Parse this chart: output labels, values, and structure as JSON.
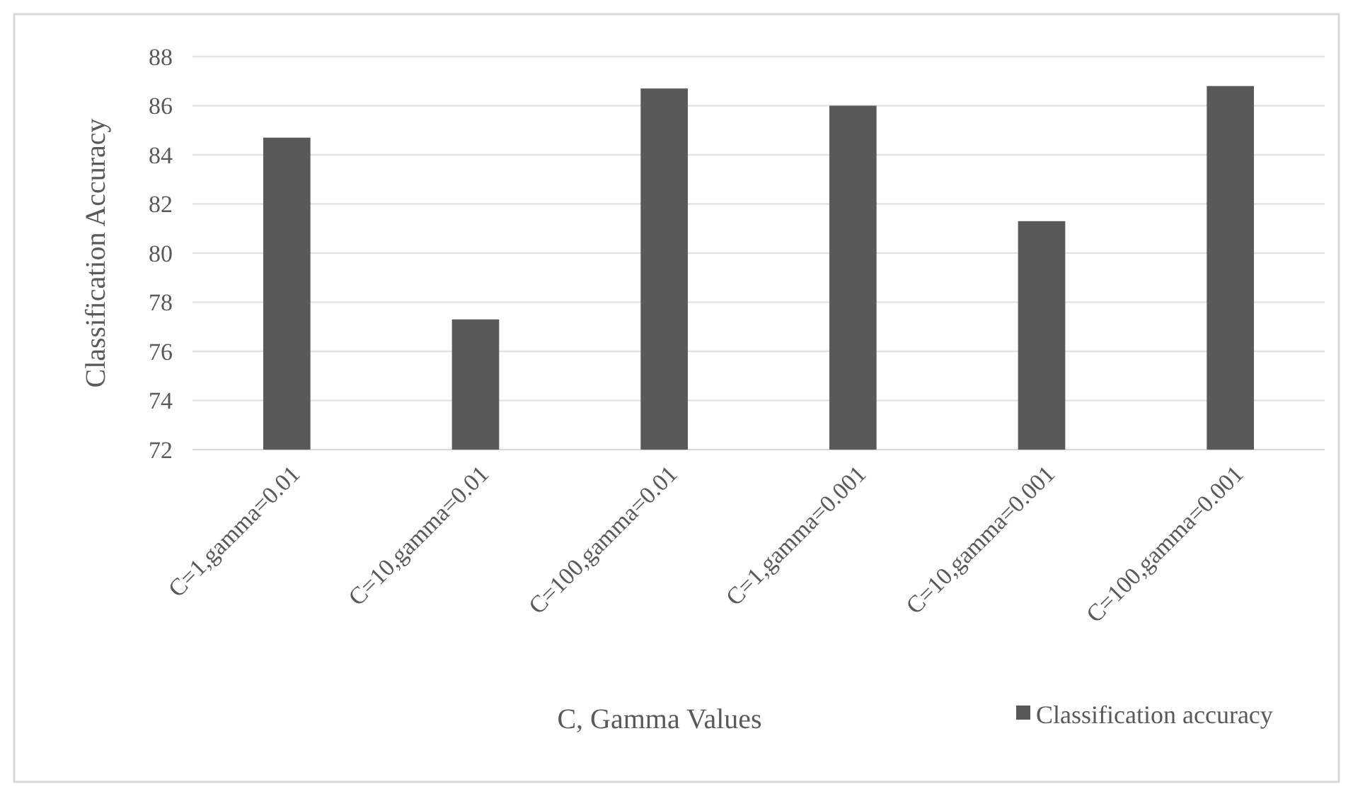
{
  "chart_data": {
    "type": "bar",
    "xlabel": "C, Gamma Values",
    "ylabel": "Classification Accuracy",
    "categories": [
      "C=1,gamma=0.01",
      "C=10,gamma=0.01",
      "C=100,gamma=0.01",
      "C=1,gamma=0.001",
      "C=10,gamma=0.001",
      "C=100,gamma=0.001"
    ],
    "series": [
      {
        "name": "Classification accuracy",
        "color": "#595959",
        "values": [
          84.7,
          77.3,
          86.7,
          86.0,
          81.3,
          86.8
        ]
      }
    ],
    "ylim": [
      72,
      88
    ],
    "yticks": [
      72,
      74,
      76,
      78,
      80,
      82,
      84,
      86,
      88
    ],
    "grid": "y",
    "legend": "bottom right"
  }
}
